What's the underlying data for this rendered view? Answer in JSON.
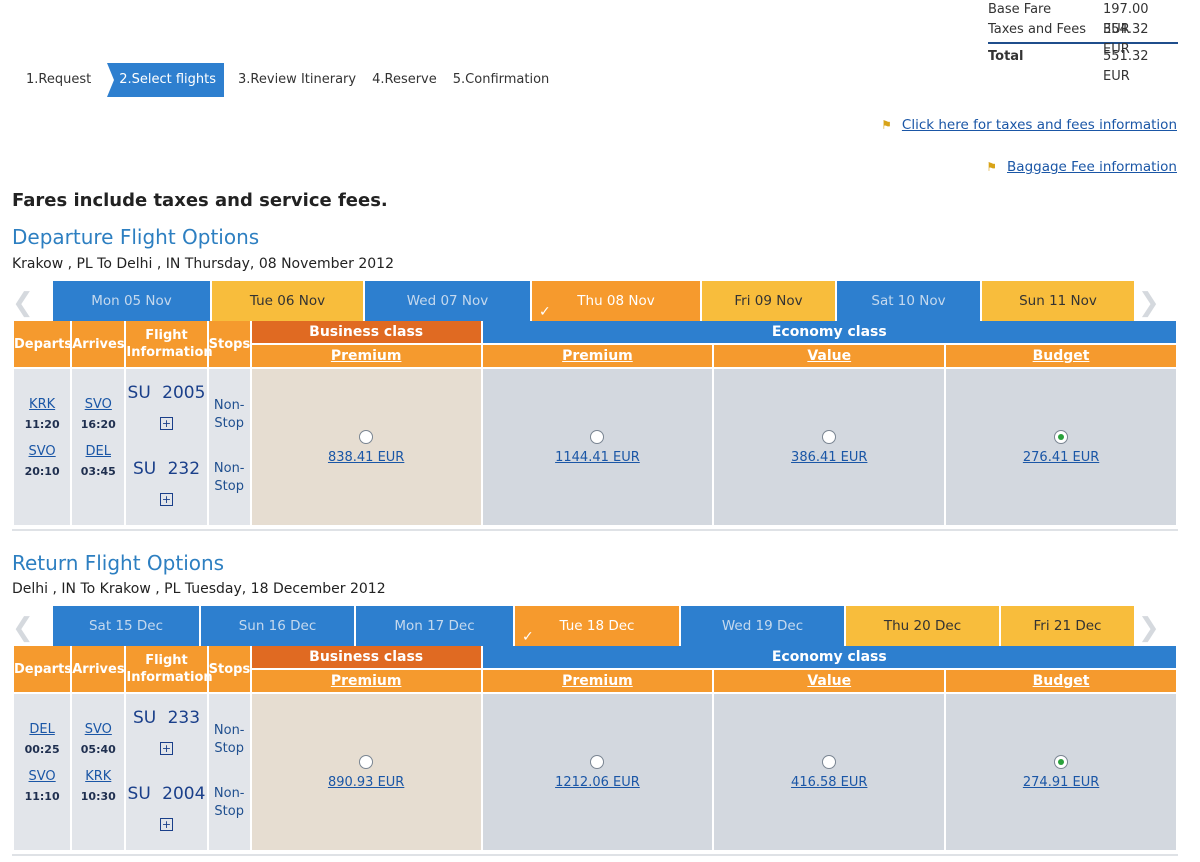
{
  "summary": {
    "base_fare_label": "Base Fare",
    "base_fare_value": "197.00 EUR",
    "taxes_label": "Taxes and Fees",
    "taxes_value": "354.32 EUR",
    "total_label": "Total",
    "total_value": "551.32 EUR"
  },
  "steps": [
    "1.Request",
    "2.Select flights",
    "3.Review Itinerary",
    "4.Reserve",
    "5.Confirmation"
  ],
  "links": {
    "taxes_info": "Click here for taxes and fees information",
    "baggage_info": "Baggage Fee information"
  },
  "note": "Fares include taxes and service fees.",
  "table_headers": {
    "departs": "Departs",
    "arrives": "Arrives",
    "flight_info": "Flight Information",
    "stops": "Stops",
    "business": "Business class",
    "economy": "Economy class",
    "premium": "Premium",
    "value": "Value",
    "budget": "Budget"
  },
  "departure": {
    "title": "Departure Flight Options",
    "subtitle": "Krakow , PL To Delhi , IN Thursday, 08 November 2012",
    "tabs": [
      "Mon 05 Nov",
      "Tue 06 Nov",
      "Wed 07 Nov",
      "Thu 08 Nov",
      "Fri 09 Nov",
      "Sat 10 Nov",
      "Sun 11 Nov"
    ],
    "seg1": {
      "from": "KRK",
      "dep_time": "11:20",
      "to": "SVO",
      "arr_time": "16:20",
      "flight": "SU 2005",
      "stops": "Non-Stop"
    },
    "seg2": {
      "from": "SVO",
      "dep_time": "20:10",
      "to": "DEL",
      "arr_time": "03:45",
      "flight": "SU 232",
      "stops": "Non-Stop"
    },
    "fares": [
      "838.41 EUR",
      "1144.41 EUR",
      "386.41 EUR",
      "276.41 EUR"
    ]
  },
  "return": {
    "title": "Return Flight Options",
    "subtitle": "Delhi , IN To Krakow , PL Tuesday, 18 December 2012",
    "tabs": [
      "Sat 15 Dec",
      "Sun 16 Dec",
      "Mon 17 Dec",
      "Tue 18 Dec",
      "Wed 19 Dec",
      "Thu 20 Dec",
      "Fri 21 Dec"
    ],
    "seg1": {
      "from": "DEL",
      "dep_time": "00:25",
      "to": "SVO",
      "arr_time": "05:40",
      "flight": "SU 233",
      "stops": "Non-Stop"
    },
    "seg2": {
      "from": "SVO",
      "dep_time": "11:10",
      "to": "KRK",
      "arr_time": "10:30",
      "flight": "SU 2004",
      "stops": "Non-Stop"
    },
    "fares": [
      "890.93 EUR",
      "1212.06 EUR",
      "416.58 EUR",
      "274.91 EUR"
    ]
  },
  "colors": {
    "accent_blue": "#2d7fcf",
    "orange": "#f59a2e",
    "business_orange": "#e06a22",
    "yellow": "#f8bd3c"
  }
}
